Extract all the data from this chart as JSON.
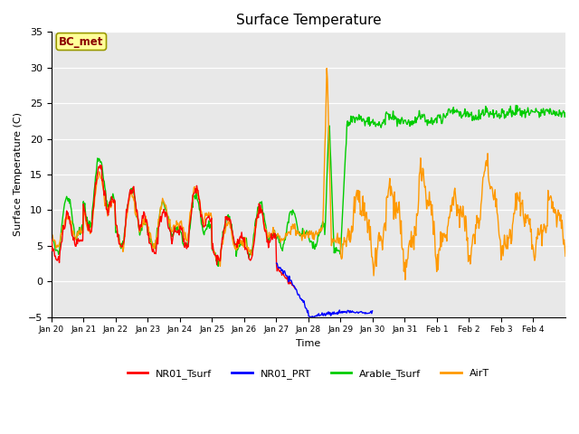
{
  "title": "Surface Temperature",
  "ylabel": "Surface Temperature (C)",
  "xlabel": "Time",
  "ylim": [
    -5,
    35
  ],
  "bg_color": "#e8e8e8",
  "annotation_text": "BC_met",
  "annotation_bg": "#ffff99",
  "annotation_border": "#999900",
  "annotation_text_color": "#8B0000",
  "tick_labels": [
    "Jan 20",
    "Jan 21",
    "Jan 22",
    "Jan 23",
    "Jan 24",
    "Jan 25",
    "Jan 26",
    "Jan 27",
    "Jan 28",
    "Jan 29",
    "Jan 30",
    "Jan 31",
    "Feb 1",
    "Feb 2",
    "Feb 3",
    "Feb 4"
  ],
  "series": {
    "NR01_Tsurf": {
      "color": "#ff0000",
      "linewidth": 1.0
    },
    "NR01_PRT": {
      "color": "#0000ff",
      "linewidth": 1.0
    },
    "Arable_Tsurf": {
      "color": "#00cc00",
      "linewidth": 1.0
    },
    "AirT": {
      "color": "#ff9900",
      "linewidth": 1.0
    }
  }
}
